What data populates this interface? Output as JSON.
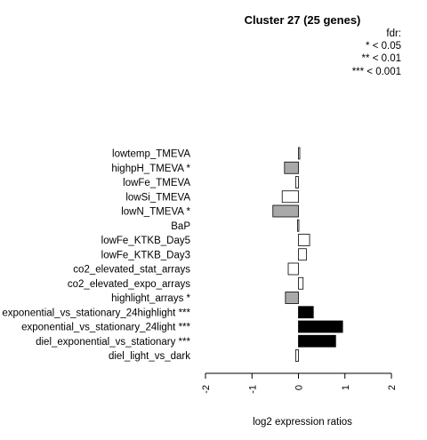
{
  "chart_data": {
    "type": "bar",
    "orientation": "horizontal",
    "title": "Cluster 27 (25 genes)",
    "xlabel": "log2 expression ratios",
    "ylabel": "",
    "xlim": [
      -2,
      2
    ],
    "xticks": [
      "-2",
      "-1",
      "0",
      "1",
      "2"
    ],
    "legend": {
      "title": "fdr:",
      "entries": [
        "* < 0.05",
        "** < 0.01",
        "*** < 0.001"
      ],
      "placement": "top-right"
    },
    "categories": [
      "lowtemp_TMEVA",
      "highpH_TMEVA *",
      "lowFe_TMEVA",
      "lowSi_TMEVA",
      "lowN_TMEVA *",
      "BaP",
      "lowFe_KTKB_Day5",
      "lowFe_KTKB_Day3",
      "co2_elevated_stat_arrays",
      "co2_elevated_expo_arrays",
      "highlight_arrays *",
      "exponential_vs_stationary_24highlight ***",
      "exponential_vs_stationary_24light ***",
      "diel_exponential_vs_stationary ***",
      "diel_light_vs_dark"
    ],
    "values": [
      0.02,
      -0.3,
      -0.06,
      -0.35,
      -0.55,
      -0.02,
      0.24,
      0.17,
      -0.22,
      0.1,
      -0.28,
      0.32,
      0.95,
      0.8,
      -0.06
    ],
    "significance": [
      "none",
      "*",
      "none",
      "none",
      "*",
      "none",
      "none",
      "none",
      "none",
      "none",
      "*",
      "***",
      "***",
      "***",
      "none"
    ],
    "colors": {
      "none": "#ffffff",
      "*": "#a9a9a9",
      "***": "#000000"
    }
  }
}
